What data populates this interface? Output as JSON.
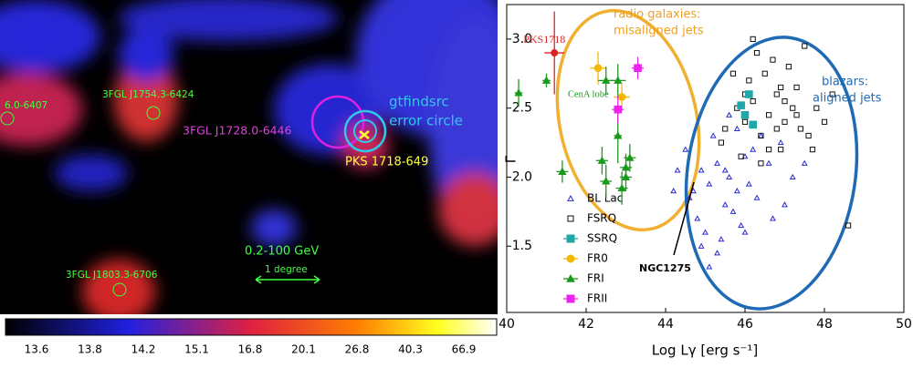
{
  "sky_map": {
    "labels": [
      "6.0-6407",
      "3FGL J1754.3-6424",
      "3FGL J1728.0-6446",
      "gtfindsrc",
      "error circle",
      "PKS 1718-649",
      "0.2-100 GeV",
      "1 degree",
      "3FGL J1803.3-6706"
    ],
    "colorbar_ticks": [
      "13.6",
      "13.8",
      "14.2",
      "15.1",
      "16.8",
      "20.1",
      "26.8",
      "40.3",
      "66.9"
    ]
  },
  "chart_data": {
    "type": "scatter",
    "x_label": "Log Lγ [erg s⁻¹]",
    "y_label": "Γ",
    "xlim": [
      40,
      50
    ],
    "xticks": [
      40,
      42,
      44,
      46,
      48,
      50
    ],
    "ylim": [
      1.02,
      3.25
    ],
    "yticks": [
      1.5,
      {
        "value": 2,
        "label": "2.0"
      },
      2.5,
      {
        "value": 3,
        "label": "3.0"
      }
    ],
    "legend": "lower left",
    "series": [
      {
        "name": "BL Lac",
        "color": "#2a2ad0",
        "marker": "triangle",
        "x": [
          44.2,
          44.6,
          44.9,
          45.1,
          45.3,
          45.5,
          45.6,
          45.8,
          46.0,
          46.2,
          44.8,
          45.0,
          45.4,
          45.7,
          45.9,
          46.4,
          46.6,
          46.9,
          47.2,
          45.2,
          44.5,
          45.6,
          46.1,
          45.3,
          44.9,
          46.3,
          47.0,
          45.8,
          46.7,
          45.5,
          44.3,
          47.5,
          45.1,
          46.0,
          44.7
        ],
        "values": [
          1.9,
          1.85,
          2.05,
          1.95,
          2.1,
          1.8,
          2.0,
          1.9,
          2.15,
          2.2,
          1.7,
          1.6,
          1.55,
          1.75,
          1.65,
          2.3,
          2.1,
          2.25,
          2.0,
          2.3,
          2.2,
          2.45,
          1.95,
          1.45,
          1.5,
          1.85,
          1.8,
          2.35,
          1.7,
          2.05,
          2.05,
          2.1,
          1.35,
          1.6,
          1.9
        ]
      },
      {
        "name": "FSRQ",
        "color": "#111111",
        "marker": "square",
        "x": [
          45.5,
          45.8,
          46.0,
          46.2,
          46.4,
          46.6,
          46.8,
          47.0,
          47.2,
          47.4,
          46.1,
          46.5,
          46.9,
          47.3,
          47.6,
          47.8,
          48.0,
          46.3,
          46.7,
          47.1,
          45.9,
          46.0,
          46.6,
          47.5,
          48.2,
          46.4,
          47.0,
          45.7,
          46.8,
          47.7,
          48.6,
          46.2,
          47.3,
          45.4,
          46.9
        ],
        "values": [
          2.35,
          2.5,
          2.4,
          2.55,
          2.3,
          2.45,
          2.6,
          2.4,
          2.5,
          2.35,
          2.7,
          2.75,
          2.2,
          2.65,
          2.3,
          2.5,
          2.4,
          2.9,
          2.85,
          2.8,
          2.15,
          2.6,
          2.2,
          2.95,
          2.6,
          2.1,
          2.55,
          2.75,
          2.35,
          2.2,
          1.65,
          3.0,
          2.45,
          2.25,
          2.65
        ]
      },
      {
        "name": "SSRQ",
        "color": "#20a8a8",
        "marker": "square",
        "x": [
          45.9,
          46.0,
          46.2,
          46.1
        ],
        "values": [
          2.52,
          2.45,
          2.38,
          2.6
        ]
      },
      {
        "name": "FR0",
        "color": "#f5b800",
        "marker": "circle",
        "x": [
          42.3,
          42.9
        ],
        "values": [
          2.79,
          2.58
        ],
        "xerr": [
          0.2,
          0.2
        ],
        "yerr": [
          0.12,
          0.1
        ]
      },
      {
        "name": "FRI",
        "color": "#1a9a1a",
        "marker": "triangle",
        "x": [
          40.3,
          41.0,
          41.4,
          42.5,
          42.8,
          42.4,
          42.5,
          42.9,
          43.0,
          43.1,
          43.0,
          42.8
        ],
        "values": [
          2.61,
          2.7,
          2.04,
          2.7,
          2.7,
          2.12,
          1.97,
          1.92,
          2.07,
          2.14,
          2.0,
          2.3
        ],
        "xerr": [
          0.1,
          0.1,
          0.15,
          0.2,
          0.2,
          0.15,
          0.15,
          0.15,
          0.15,
          0.15,
          0.15,
          0.1
        ],
        "yerr": [
          0.1,
          0.05,
          0.08,
          0.1,
          0.12,
          0.1,
          0.12,
          0.12,
          0.1,
          0.1,
          0.1,
          0.2
        ]
      },
      {
        "name": "FRII",
        "color": "#ee22ee",
        "marker": "square",
        "x": [
          43.3,
          42.8
        ],
        "values": [
          2.79,
          2.49
        ],
        "xerr": [
          0.15,
          0.15
        ],
        "yerr": [
          0.08,
          0.1
        ]
      }
    ],
    "highlights": [
      {
        "label": "PKS1718",
        "color": "#dd2222",
        "x": 41.2,
        "y": 2.9,
        "xerr": 0.25,
        "yerr": 0.3
      }
    ],
    "annotations": [
      "radio galaxies:",
      "misaligned jets",
      "blazars:",
      "aligned jets",
      "CenA lobe",
      "NGC1275"
    ]
  }
}
